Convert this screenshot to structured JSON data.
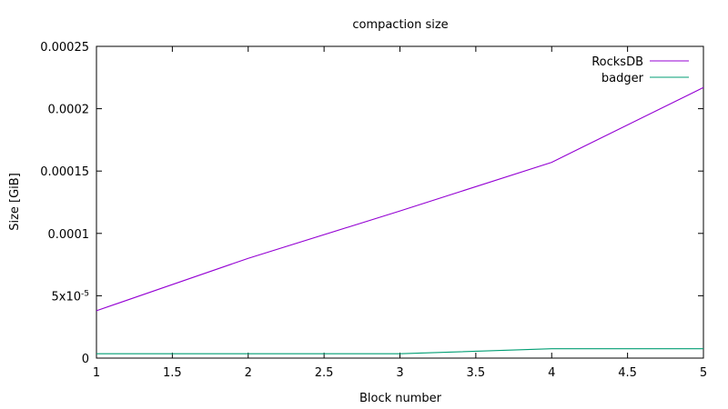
{
  "chart_data": {
    "type": "line",
    "title": "compaction size",
    "xlabel": "Block number",
    "ylabel": "Size [GiB]",
    "xlim": [
      1,
      5
    ],
    "ylim": [
      0,
      0.00025
    ],
    "x_ticks": [
      "1",
      "1.5",
      "2",
      "2.5",
      "3",
      "3.5",
      "4",
      "4.5",
      "5"
    ],
    "y_ticks": [
      {
        "value": 0,
        "label": "0"
      },
      {
        "value": 5e-05,
        "label": "5x10",
        "exp": "-5"
      },
      {
        "value": 0.0001,
        "label": "0.0001"
      },
      {
        "value": 0.00015,
        "label": "0.00015"
      },
      {
        "value": 0.0002,
        "label": "0.0002"
      },
      {
        "value": 0.00025,
        "label": "0.00025"
      }
    ],
    "grid": false,
    "legend_position": "top-right",
    "x": [
      1,
      2,
      3,
      4,
      5
    ],
    "series": [
      {
        "name": "RocksDB",
        "color": "#9400d3",
        "values": [
          3.8e-05,
          8e-05,
          0.000118,
          0.000157,
          0.000217
        ]
      },
      {
        "name": "badger",
        "color": "#009e73",
        "values": [
          3.5e-06,
          3.5e-06,
          3.5e-06,
          7.5e-06,
          7.5e-06
        ]
      }
    ]
  }
}
